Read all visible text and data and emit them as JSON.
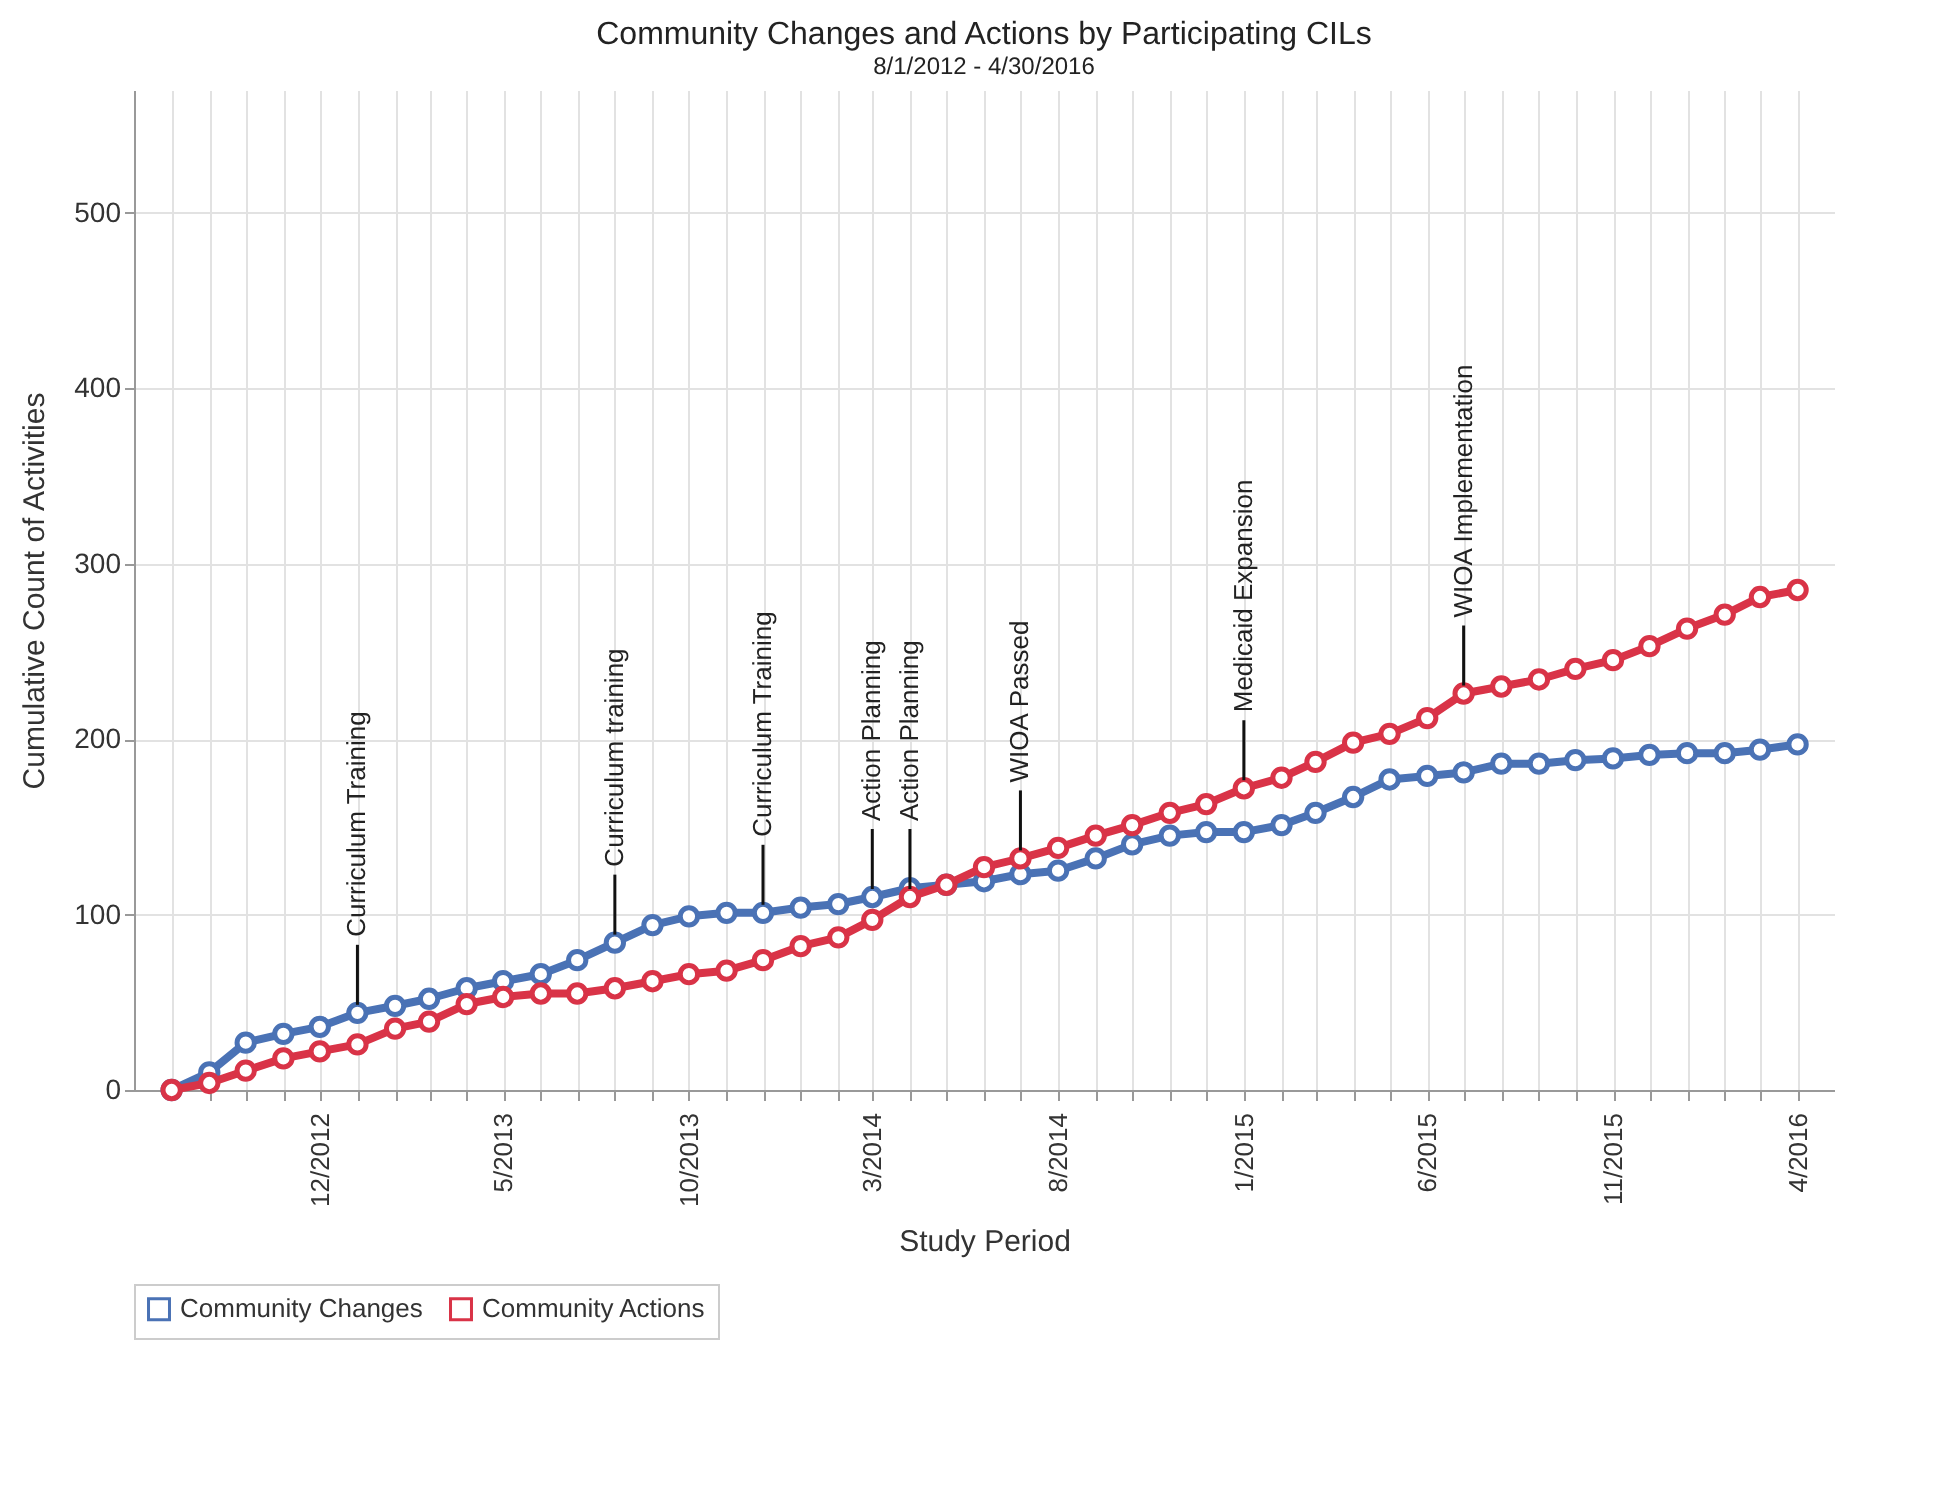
{
  "chart_data": {
    "type": "line",
    "title": "Community Changes and Actions by Participating CILs",
    "subtitle": "8/1/2012 - 4/30/2016",
    "xlabel": "Study Period",
    "ylabel": "Cumulative Count of Activities",
    "x": [
      "2012-08",
      "2012-09",
      "2012-10",
      "2012-11",
      "2012-12",
      "2013-01",
      "2013-02",
      "2013-03",
      "2013-04",
      "2013-05",
      "2013-06",
      "2013-07",
      "2013-08",
      "2013-09",
      "2013-10",
      "2013-11",
      "2013-12",
      "2014-01",
      "2014-02",
      "2014-03",
      "2014-04",
      "2014-05",
      "2014-06",
      "2014-07",
      "2014-08",
      "2014-09",
      "2014-10",
      "2014-11",
      "2014-12",
      "2015-01",
      "2015-02",
      "2015-03",
      "2015-04",
      "2015-05",
      "2015-06",
      "2015-07",
      "2015-08",
      "2015-09",
      "2015-10",
      "2015-11",
      "2015-12",
      "2016-01",
      "2016-02",
      "2016-03",
      "2016-04"
    ],
    "series": [
      {
        "name": "Community Changes",
        "color": "#4a72b5",
        "values": [
          0,
          10,
          27,
          32,
          36,
          44,
          48,
          52,
          58,
          62,
          66,
          74,
          84,
          94,
          99,
          101,
          101,
          104,
          106,
          110,
          115,
          117,
          119,
          123,
          125,
          132,
          140,
          145,
          147,
          147,
          151,
          158,
          167,
          177,
          179,
          181,
          186,
          186,
          188,
          189,
          191,
          192,
          192,
          194,
          197
        ]
      },
      {
        "name": "Community Actions",
        "color": "#d93347",
        "values": [
          0,
          4,
          11,
          18,
          22,
          26,
          35,
          39,
          49,
          53,
          55,
          55,
          58,
          62,
          66,
          68,
          74,
          82,
          87,
          97,
          110,
          117,
          127,
          132,
          138,
          145,
          151,
          158,
          163,
          172,
          178,
          187,
          198,
          203,
          212,
          226,
          230,
          234,
          240,
          245,
          253,
          263,
          271,
          281,
          285
        ]
      }
    ],
    "xlim": [
      "2012-07",
      "2016-05"
    ],
    "xticks": [
      {
        "value": "2012-08",
        "label": null
      },
      {
        "value": "2012-09",
        "label": null
      },
      {
        "value": "2012-10",
        "label": null
      },
      {
        "value": "2012-11",
        "label": null
      },
      {
        "value": "2012-12",
        "label": "12/2012"
      },
      {
        "value": "2013-01",
        "label": null
      },
      {
        "value": "2013-02",
        "label": null
      },
      {
        "value": "2013-03",
        "label": null
      },
      {
        "value": "2013-04",
        "label": null
      },
      {
        "value": "2013-05",
        "label": "5/2013"
      },
      {
        "value": "2013-06",
        "label": null
      },
      {
        "value": "2013-07",
        "label": null
      },
      {
        "value": "2013-08",
        "label": null
      },
      {
        "value": "2013-09",
        "label": null
      },
      {
        "value": "2013-10",
        "label": "10/2013"
      },
      {
        "value": "2013-11",
        "label": null
      },
      {
        "value": "2013-12",
        "label": null
      },
      {
        "value": "2014-01",
        "label": null
      },
      {
        "value": "2014-02",
        "label": null
      },
      {
        "value": "2014-03",
        "label": "3/2014"
      },
      {
        "value": "2014-04",
        "label": null
      },
      {
        "value": "2014-05",
        "label": null
      },
      {
        "value": "2014-06",
        "label": null
      },
      {
        "value": "2014-07",
        "label": null
      },
      {
        "value": "2014-08",
        "label": "8/2014"
      },
      {
        "value": "2014-09",
        "label": null
      },
      {
        "value": "2014-10",
        "label": null
      },
      {
        "value": "2014-11",
        "label": null
      },
      {
        "value": "2014-12",
        "label": null
      },
      {
        "value": "2015-01",
        "label": "1/2015"
      },
      {
        "value": "2015-02",
        "label": null
      },
      {
        "value": "2015-03",
        "label": null
      },
      {
        "value": "2015-04",
        "label": null
      },
      {
        "value": "2015-05",
        "label": null
      },
      {
        "value": "2015-06",
        "label": "6/2015"
      },
      {
        "value": "2015-07",
        "label": null
      },
      {
        "value": "2015-08",
        "label": null
      },
      {
        "value": "2015-09",
        "label": null
      },
      {
        "value": "2015-10",
        "label": null
      },
      {
        "value": "2015-11",
        "label": "11/2015"
      },
      {
        "value": "2015-12",
        "label": null
      },
      {
        "value": "2016-01",
        "label": null
      },
      {
        "value": "2016-02",
        "label": null
      },
      {
        "value": "2016-03",
        "label": null
      },
      {
        "value": "2016-04",
        "label": "4/2016"
      }
    ],
    "ylim": [
      0,
      570
    ],
    "yticks": [
      0,
      100,
      200,
      300,
      400,
      500
    ],
    "annotations": [
      {
        "text": "Curriculum Training",
        "x": "2013-01",
        "y": 44
      },
      {
        "text": "Curriculum training",
        "x": "2013-08",
        "y": 84
      },
      {
        "text": "Curriculum Training",
        "x": "2013-12",
        "y": 101
      },
      {
        "text": "Action Planning",
        "x": "2014-03",
        "y": 110
      },
      {
        "text": "Action Planning",
        "x": "2014-04",
        "y": 110
      },
      {
        "text": "WIOA Passed",
        "x": "2014-07",
        "y": 132
      },
      {
        "text": "Medicaid Expansion",
        "x": "2015-01",
        "y": 172
      },
      {
        "text": "WIOA Implementation",
        "x": "2015-07",
        "y": 226
      }
    ],
    "grid": true,
    "legend": "bottom",
    "marker": "circle",
    "line_style": "solid"
  }
}
